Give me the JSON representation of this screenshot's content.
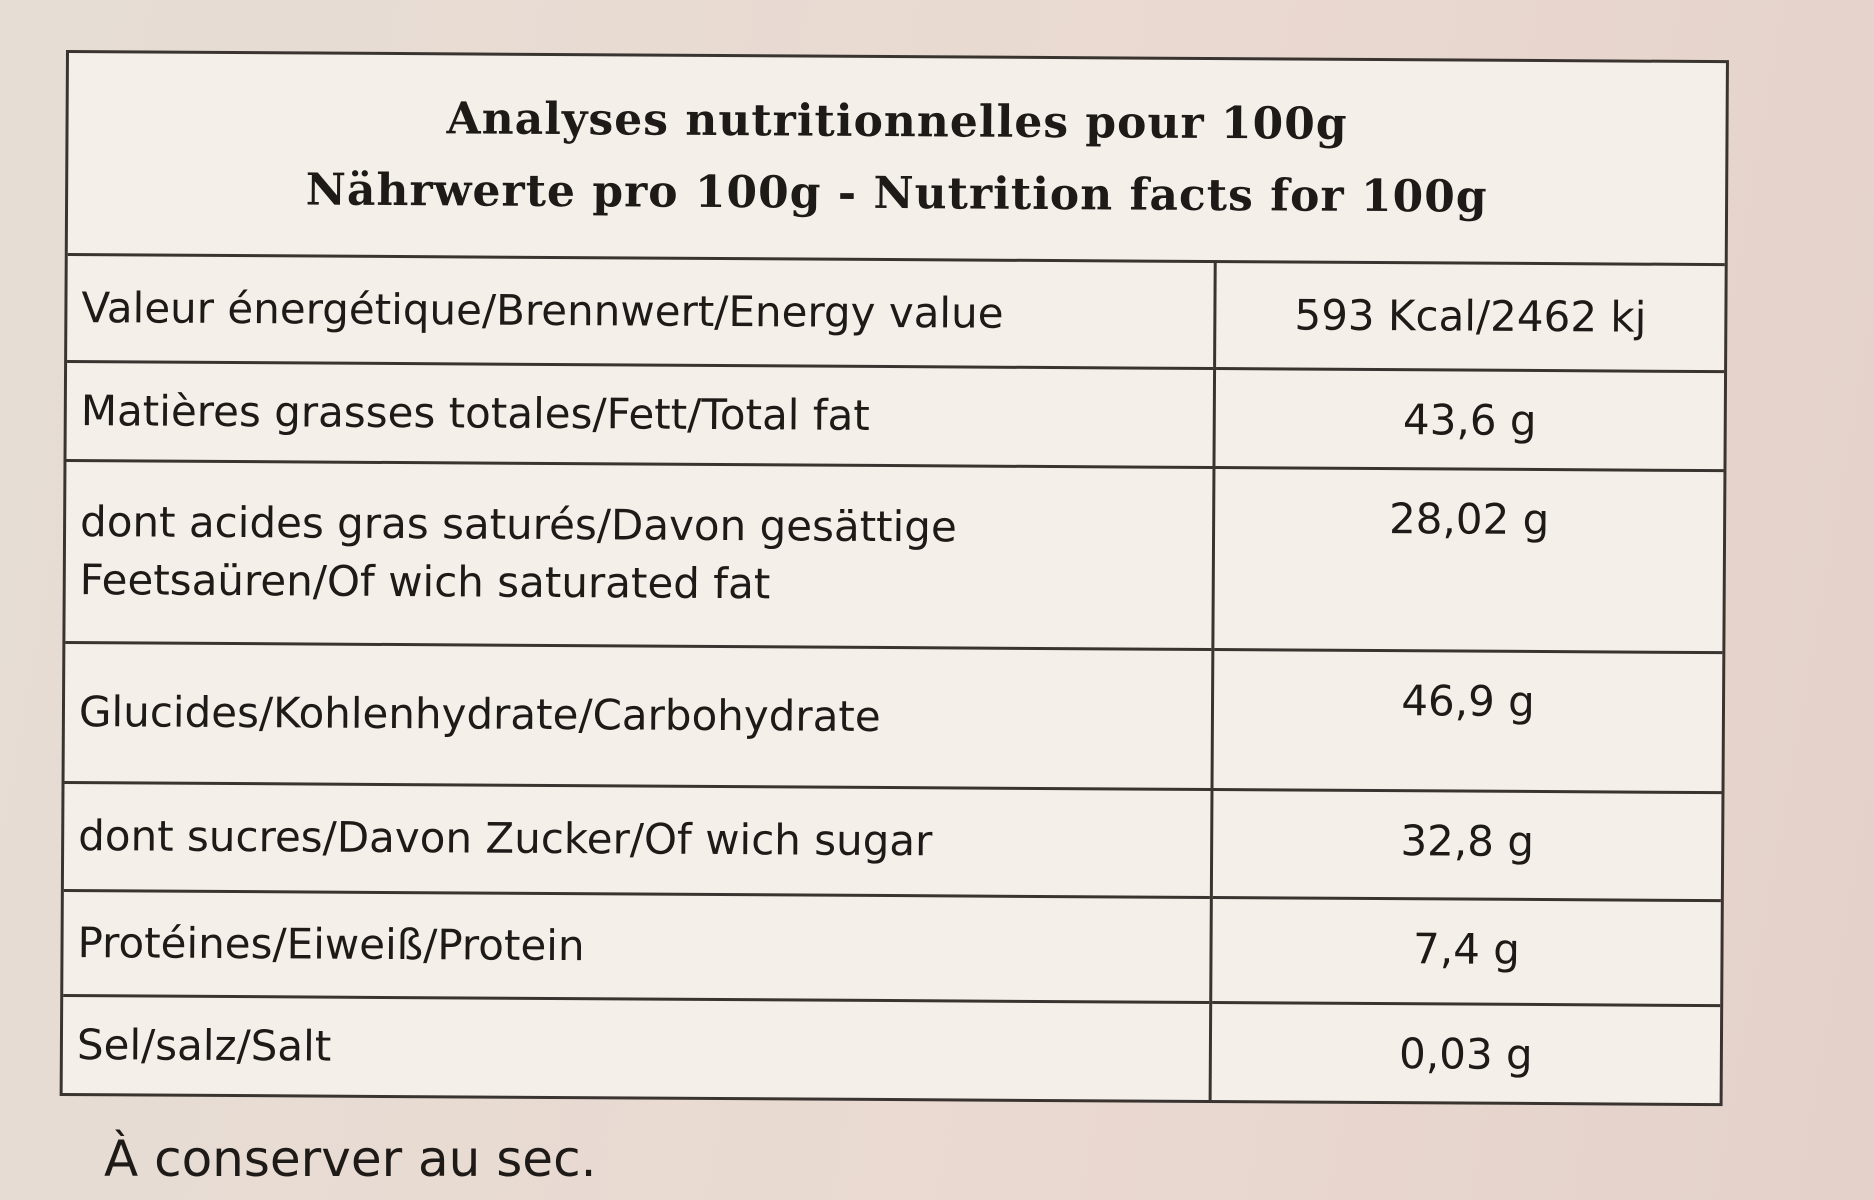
{
  "header": {
    "title": [
      "Analyses nutritionnelles pour 100g",
      "Nährwerte pro 100g - Nutrition facts for 100g"
    ]
  },
  "table": {
    "rows": [
      [
        "Valeur énergétique/Brennwert/Energy value",
        "593 Kcal/2462 kj"
      ],
      [
        "Matières grasses totales/Fett/Total fat",
        "43,6 g"
      ],
      [
        "dont acides gras saturés/Davon gesättige Feetsaüren/Of wich saturated fat",
        "28,02 g"
      ],
      [
        "Glucides/Kohlenhydrate/Carbohydrate",
        "46,9 g"
      ],
      [
        "dont sucres/Davon Zucker/Of wich sugar",
        "32,8 g"
      ],
      [
        "Protéines/Eiweiß/Protein",
        "7,4 g"
      ],
      [
        "Sel/salz/Salt",
        "0,03 g"
      ]
    ]
  },
  "footer": {
    "note": "À conserver au sec."
  }
}
